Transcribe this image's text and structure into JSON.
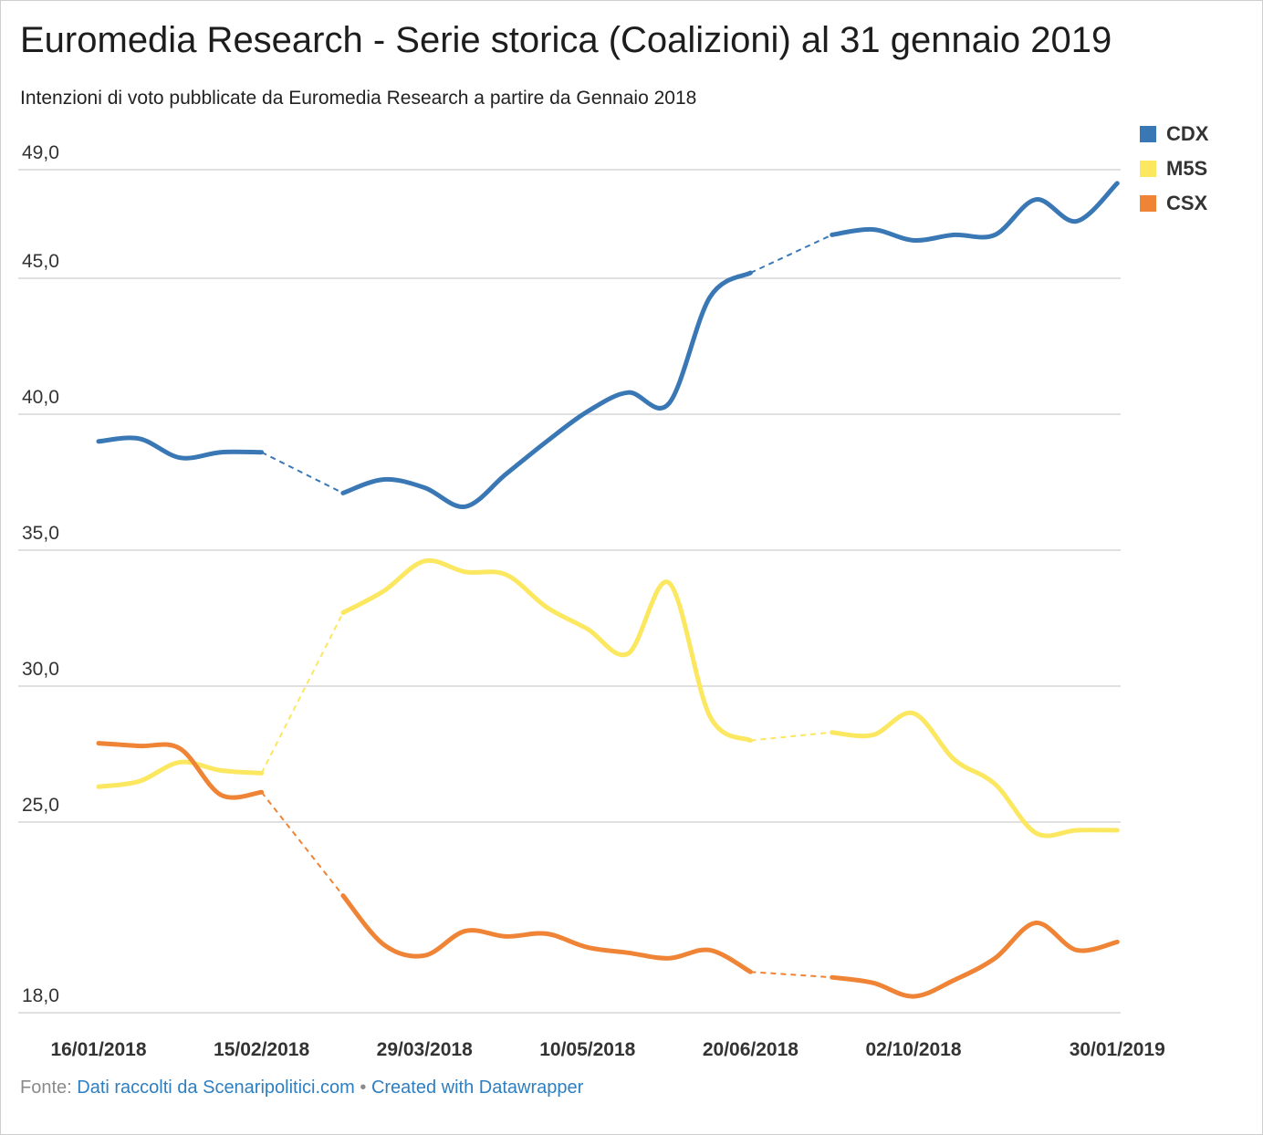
{
  "title": "Euromedia Research - Serie storica (Coalizioni) al 31 gennaio 2019",
  "subtitle": "Intenzioni di voto pubblicate da Euromedia Research a partire da Gennaio 2018",
  "footer": {
    "prefix": "Fonte: ",
    "source_link": "Dati raccolti da Scenaripolitici.com",
    "separator": " • ",
    "credit_link": "Created with Datawrapper"
  },
  "chart_data": {
    "type": "line",
    "title": "Euromedia Research - Serie storica (Coalizioni) al 31 gennaio 2019",
    "x_tick_labels": [
      "16/01/2018",
      "15/02/2018",
      "29/03/2018",
      "10/05/2018",
      "20/06/2018",
      "02/10/2018",
      "30/01/2019"
    ],
    "y_ticks": [
      {
        "value": 49,
        "label": "49,0"
      },
      {
        "value": 45,
        "label": "45,0"
      },
      {
        "value": 40,
        "label": "40,0"
      },
      {
        "value": 35,
        "label": "35,0"
      },
      {
        "value": 30,
        "label": "30,0"
      },
      {
        "value": 25,
        "label": "25,0"
      },
      {
        "value": 18,
        "label": "18,0"
      }
    ],
    "ylim": [
      18,
      49
    ],
    "grid": true,
    "legend_position": "top-right",
    "x": [
      0,
      1,
      2,
      3,
      4,
      5,
      6,
      7,
      8,
      9,
      10,
      11,
      12,
      13,
      14,
      15,
      16,
      17,
      18,
      19,
      20,
      21,
      22,
      23,
      24,
      25,
      26
    ],
    "series": [
      {
        "name": "CDX",
        "color": "#3a78b5",
        "values": [
          39.0,
          39.1,
          38.4,
          38.6,
          38.6,
          null,
          37.1,
          37.6,
          37.3,
          36.6,
          37.8,
          39.0,
          40.1,
          40.8,
          40.4,
          44.3,
          45.2,
          null,
          46.6,
          46.8,
          46.4,
          46.6,
          46.6,
          47.9,
          47.1,
          48.5,
          null
        ],
        "gaps_dashed": true
      },
      {
        "name": "M5S",
        "color": "#fbe760",
        "values": [
          26.3,
          26.5,
          27.2,
          26.9,
          26.8,
          null,
          32.7,
          33.5,
          34.6,
          34.2,
          34.1,
          32.9,
          32.1,
          31.2,
          33.8,
          28.9,
          28.0,
          null,
          28.3,
          28.2,
          29.0,
          27.3,
          26.4,
          24.6,
          24.7,
          24.7,
          null
        ],
        "gaps_dashed": true
      },
      {
        "name": "CSX",
        "color": "#ef8436",
        "values": [
          27.9,
          27.8,
          27.7,
          26.0,
          26.1,
          null,
          22.3,
          20.5,
          20.1,
          21.0,
          20.8,
          20.9,
          20.4,
          20.2,
          20.0,
          20.3,
          19.5,
          null,
          19.3,
          19.1,
          18.6,
          19.2,
          20.0,
          21.3,
          20.3,
          20.6,
          null
        ],
        "gaps_dashed": true
      }
    ]
  }
}
